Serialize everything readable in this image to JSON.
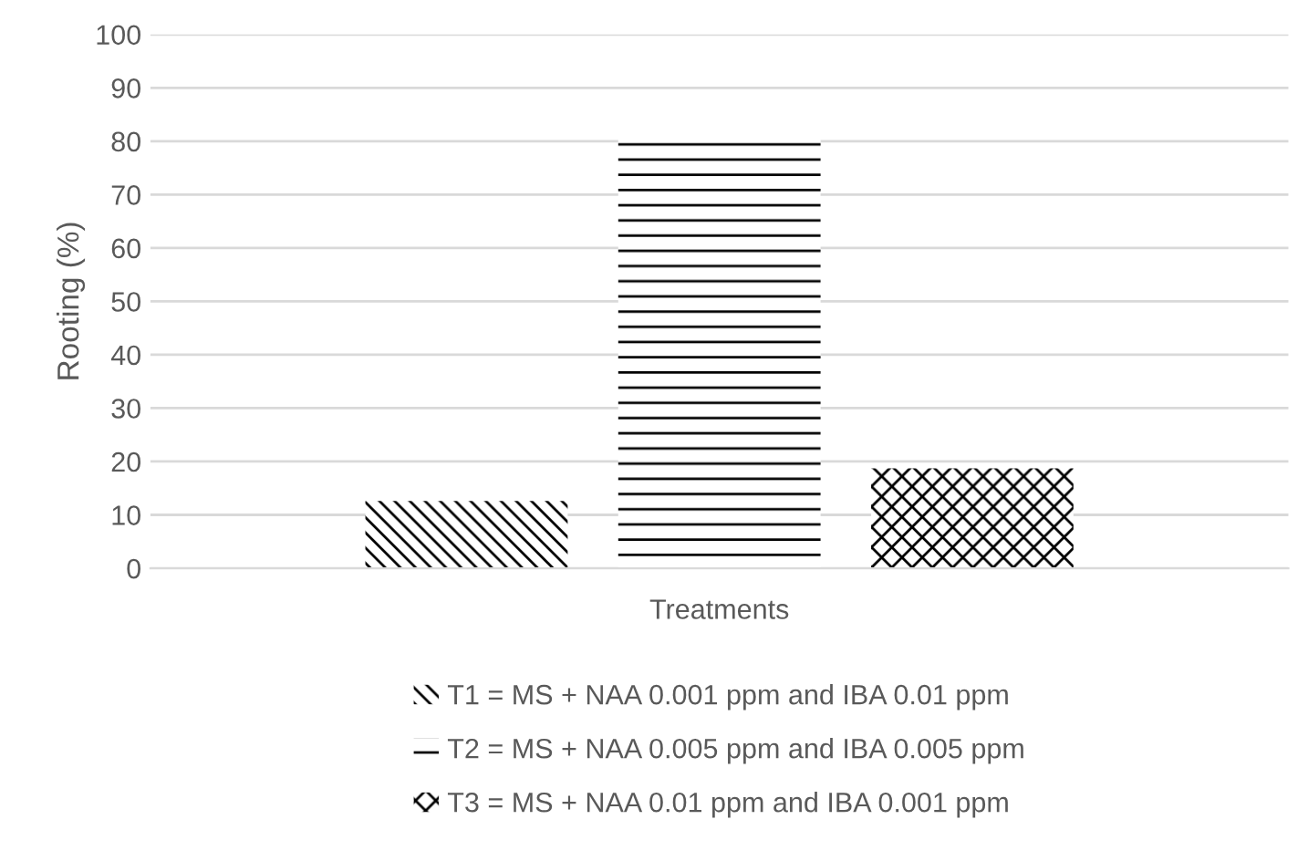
{
  "chart_data": {
    "type": "bar",
    "ylabel": "Rooting (%)",
    "categories": [
      "Treatments"
    ],
    "series": [
      {
        "name": "T1 = MS + NAA 0.001 ppm and IBA 0.01 ppm",
        "color": "#000000",
        "values": [
          12.6
        ]
      },
      {
        "name": "T2 = MS + NAA 0.005 ppm and IBA 0.005 ppm",
        "color": "#000000",
        "values": [
          81.4
        ]
      },
      {
        "name": "T3 = MS + NAA 0.01 ppm and IBA 0.001 ppm",
        "color": "#000000",
        "values": [
          18.7
        ]
      }
    ],
    "ylim": [
      0,
      100
    ],
    "yticks": [
      0,
      10,
      20,
      30,
      40,
      50,
      60,
      70,
      80,
      90,
      100
    ],
    "grid": "y",
    "legend": "bottom"
  }
}
